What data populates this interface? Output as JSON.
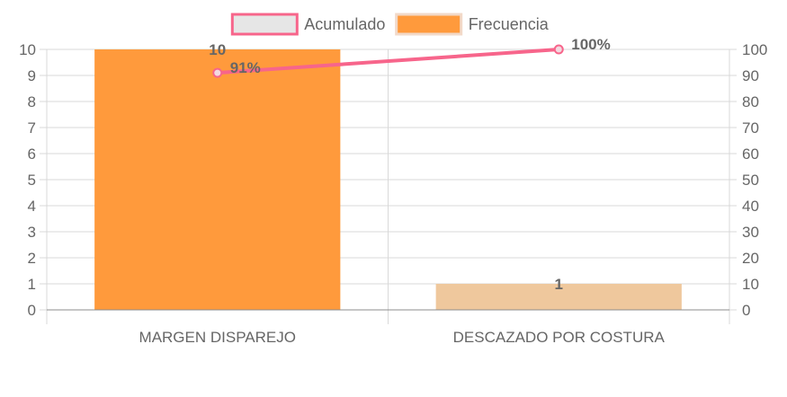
{
  "chart_data": {
    "type": "bar",
    "categories": [
      "MARGEN DISPAREJO",
      "DESCAZADO POR COSTURA"
    ],
    "series": [
      {
        "name": "Frecuencia",
        "type": "bar",
        "axis": "left",
        "values": [
          10,
          1
        ],
        "colors": [
          "#ff9a3c",
          "#efc89d"
        ],
        "labels": [
          "10",
          "1"
        ]
      },
      {
        "name": "Acumulado",
        "type": "line",
        "axis": "right",
        "values": [
          91,
          100
        ],
        "color": "#f7658b",
        "labels": [
          "91%",
          "100%"
        ]
      }
    ],
    "y_left": {
      "min": 0,
      "max": 10,
      "step": 1
    },
    "y_right": {
      "min": 0,
      "max": 100,
      "step": 10
    },
    "legend": {
      "position": "top",
      "items": [
        {
          "label": "Acumulado",
          "fill": "#e6e6e6",
          "stroke": "#f7658b"
        },
        {
          "label": "Frecuencia",
          "fill": "#ff9a3c",
          "stroke": "#f2d9c8"
        }
      ]
    },
    "grid": true
  }
}
